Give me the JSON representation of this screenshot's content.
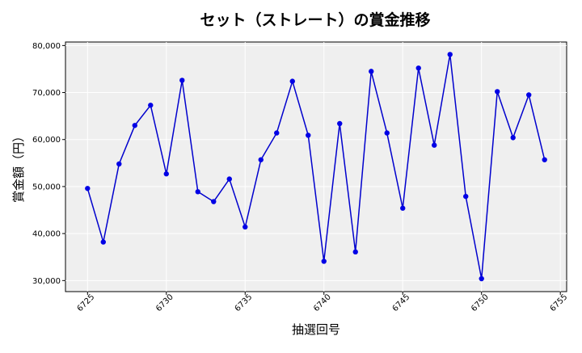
{
  "chart_data": {
    "type": "line",
    "title": "セット（ストレート）の賞金推移",
    "xlabel": "抽選回号",
    "ylabel": "賞金額（円）",
    "xlim": [
      6723.6,
      6755.4
    ],
    "ylim": [
      27650,
      80750
    ],
    "x_ticks": [
      6725,
      6730,
      6735,
      6740,
      6745,
      6750,
      6755
    ],
    "y_ticks": [
      30000,
      40000,
      50000,
      60000,
      70000,
      80000
    ],
    "y_tick_labels": [
      "30,000",
      "40,000",
      "50,000",
      "60,000",
      "70,000",
      "80,000"
    ],
    "grid": true,
    "line_color": "#0000cd",
    "marker_color": "#0000e6",
    "plot_background": "#ebebeb",
    "series": [
      {
        "x": [
          6725,
          6726,
          6727,
          6728,
          6729,
          6730,
          6731,
          6732,
          6733,
          6734,
          6735,
          6736,
          6737,
          6738,
          6739,
          6740,
          6741,
          6742,
          6743,
          6744,
          6745,
          6746,
          6747,
          6748,
          6749,
          6750,
          6751,
          6752,
          6753,
          6754
        ],
        "values": [
          49600,
          38200,
          54800,
          63000,
          67300,
          52700,
          72600,
          48900,
          46800,
          51600,
          41400,
          55700,
          61400,
          72400,
          60900,
          34100,
          63400,
          36100,
          74500,
          61400,
          45400,
          75200,
          58800,
          78100,
          47900,
          30400,
          70200,
          60400,
          69500,
          55700
        ]
      }
    ]
  }
}
